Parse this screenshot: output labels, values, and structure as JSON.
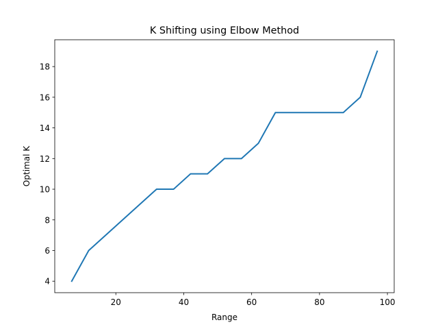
{
  "chart_data": {
    "type": "line",
    "title": "K Shifting using Elbow Method",
    "xlabel": "Range",
    "ylabel": "Optimal K",
    "xlim": [
      2,
      102
    ],
    "ylim": [
      3.25,
      19.75
    ],
    "xticks": [
      20,
      40,
      60,
      80,
      100
    ],
    "yticks": [
      4,
      6,
      8,
      10,
      12,
      14,
      16,
      18
    ],
    "grid": false,
    "line_color": "#1f77b4",
    "series": [
      {
        "x": [
          7,
          12,
          17,
          22,
          27,
          32,
          37,
          42,
          47,
          52,
          57,
          62,
          67,
          72,
          77,
          82,
          87,
          92,
          97
        ],
        "values": [
          4,
          6,
          7,
          8,
          9,
          10,
          10,
          11,
          11,
          12,
          12,
          13,
          15,
          15,
          15,
          15,
          15,
          16,
          19
        ]
      }
    ]
  }
}
